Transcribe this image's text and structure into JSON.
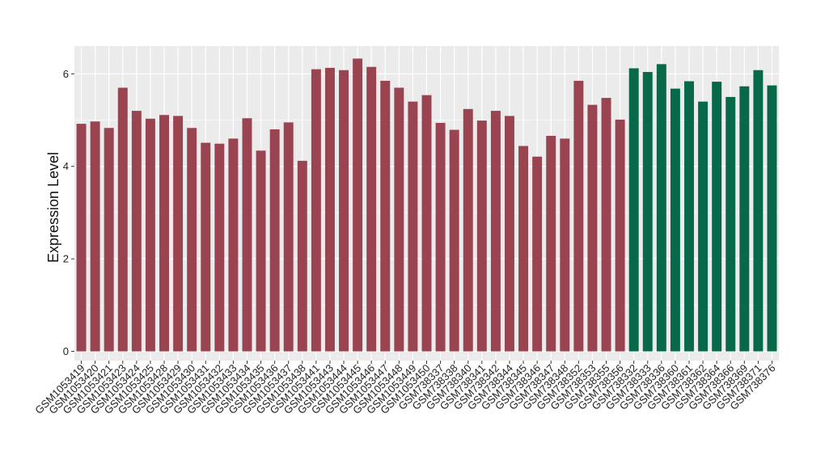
{
  "chart_data": {
    "type": "bar",
    "title": "",
    "xlabel": "",
    "ylabel": "Expression Level",
    "ylim": [
      -0.2,
      6.6
    ],
    "yticks": [
      0,
      2,
      4,
      6
    ],
    "grid": true,
    "legend": "none",
    "colors": {
      "group1": "#9a4452",
      "group2": "#08694a",
      "panel_bg": "#ebebeb",
      "grid": "#ffffff"
    },
    "categories": [
      "GSM1053419",
      "GSM1053420",
      "GSM1053421",
      "GSM1053423",
      "GSM1053424",
      "GSM1053425",
      "GSM1053428",
      "GSM1053429",
      "GSM1053430",
      "GSM1053431",
      "GSM1053432",
      "GSM1053433",
      "GSM1053434",
      "GSM1053435",
      "GSM1053436",
      "GSM1053437",
      "GSM1053438",
      "GSM1053441",
      "GSM1053443",
      "GSM1053444",
      "GSM1053445",
      "GSM1053446",
      "GSM1053447",
      "GSM1053448",
      "GSM1053449",
      "GSM1053450",
      "GSM738337",
      "GSM738338",
      "GSM738340",
      "GSM738341",
      "GSM738342",
      "GSM738344",
      "GSM738345",
      "GSM738346",
      "GSM738347",
      "GSM738348",
      "GSM738352",
      "GSM738353",
      "GSM738355",
      "GSM738356",
      "GSM738332",
      "GSM738333",
      "GSM738336",
      "GSM738360",
      "GSM738361",
      "GSM738362",
      "GSM738364",
      "GSM738366",
      "GSM738369",
      "GSM738371",
      "GSM738376"
    ],
    "values": [
      4.92,
      4.97,
      4.83,
      5.7,
      5.2,
      5.03,
      5.11,
      5.09,
      4.83,
      4.51,
      4.49,
      4.6,
      5.04,
      4.34,
      4.8,
      4.95,
      4.12,
      6.1,
      6.13,
      6.08,
      6.33,
      6.15,
      5.85,
      5.7,
      5.4,
      5.54,
      4.94,
      4.79,
      5.24,
      4.99,
      5.2,
      5.09,
      4.44,
      4.21,
      4.66,
      4.6,
      5.85,
      5.33,
      5.48,
      5.01,
      6.12,
      6.04,
      6.21,
      5.68,
      5.84,
      5.4,
      5.83,
      5.5,
      5.73,
      6.08,
      5.75
    ],
    "groups": [
      1,
      1,
      1,
      1,
      1,
      1,
      1,
      1,
      1,
      1,
      1,
      1,
      1,
      1,
      1,
      1,
      1,
      1,
      1,
      1,
      1,
      1,
      1,
      1,
      1,
      1,
      1,
      1,
      1,
      1,
      1,
      1,
      1,
      1,
      1,
      1,
      1,
      1,
      1,
      1,
      2,
      2,
      2,
      2,
      2,
      2,
      2,
      2,
      2,
      2,
      2
    ]
  }
}
